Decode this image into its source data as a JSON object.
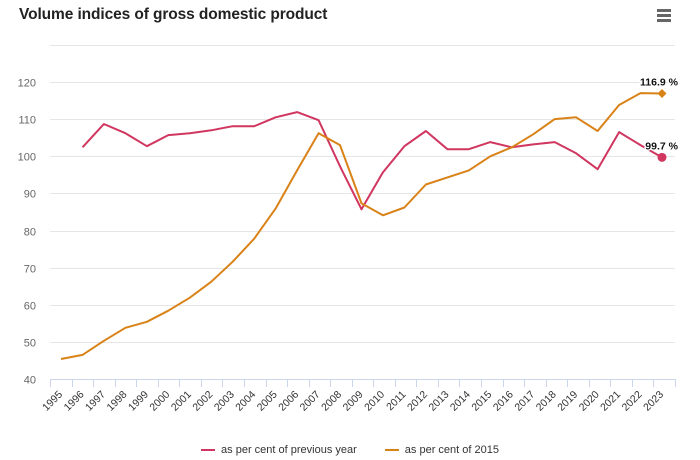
{
  "header": {
    "title": "Volume indices of gross domestic product",
    "menu_icon": "hamburger-menu-icon"
  },
  "chart_data": {
    "type": "line",
    "title": "Volume indices of gross domestic product",
    "xlabel": "",
    "ylabel": "",
    "ylim": [
      40,
      120
    ],
    "yticks": [
      40,
      50,
      60,
      70,
      80,
      90,
      100,
      110,
      120
    ],
    "grid": true,
    "legend_position": "bottom-center",
    "x": [
      "1995",
      "1996",
      "1997",
      "1998",
      "1999",
      "2000",
      "2001",
      "2002",
      "2003",
      "2004",
      "2005",
      "2006",
      "2007",
      "2008",
      "2009",
      "2010",
      "2011",
      "2012",
      "2013",
      "2014",
      "2015",
      "2016",
      "2017",
      "2018",
      "2019",
      "2020",
      "2021",
      "2022",
      "2023"
    ],
    "series": [
      {
        "name": "as per cent of previous year",
        "color": "#d0365f",
        "marker": "circle",
        "end_label": "99.7 %",
        "values": [
          null,
          102.4,
          108.7,
          106.2,
          102.7,
          105.7,
          106.2,
          107.0,
          108.1,
          108.1,
          110.5,
          111.9,
          109.7,
          97.3,
          85.7,
          95.7,
          102.7,
          106.8,
          101.9,
          101.9,
          103.8,
          102.4,
          103.2,
          103.8,
          100.8,
          96.5,
          106.5,
          103.0,
          99.7
        ]
      },
      {
        "name": "as per cent of 2015",
        "color": "#d98217",
        "marker": "diamond",
        "end_label": "116.9 %",
        "values": [
          45.4,
          46.5,
          50.3,
          53.8,
          55.4,
          58.4,
          61.9,
          66.2,
          71.6,
          77.8,
          85.9,
          96.2,
          106.2,
          103.0,
          87.3,
          84.1,
          86.2,
          92.4,
          94.3,
          96.2,
          100.0,
          102.4,
          105.9,
          110.0,
          110.5,
          106.8,
          113.8,
          117.0,
          116.9
        ]
      }
    ]
  }
}
